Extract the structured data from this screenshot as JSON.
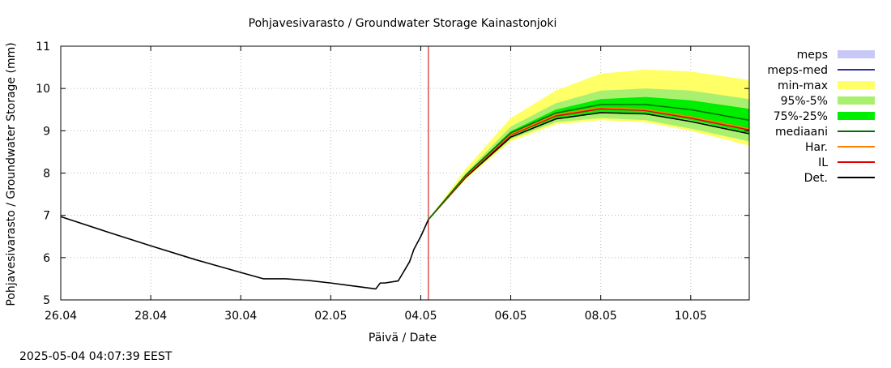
{
  "chart_data": {
    "type": "line",
    "title": "Pohjavesivarasto / Groundwater Storage   Kainastonjoki",
    "xlabel": "Päivä / Date",
    "ylabel": "Pohjavesivarasto / Groundwater Storage (mm)",
    "timestamp": "2025-05-04 04:07:39 EEST",
    "xlim": [
      0,
      15.3
    ],
    "ylim": [
      5,
      11
    ],
    "grid": true,
    "legend_position": "right",
    "x_ticks": [
      {
        "x": 0,
        "label": "26.04"
      },
      {
        "x": 2,
        "label": "28.04"
      },
      {
        "x": 4,
        "label": "30.04"
      },
      {
        "x": 6,
        "label": "02.05"
      },
      {
        "x": 8,
        "label": "04.05"
      },
      {
        "x": 10,
        "label": "06.05"
      },
      {
        "x": 12,
        "label": "08.05"
      },
      {
        "x": 14,
        "label": "10.05"
      }
    ],
    "y_ticks": [
      5,
      6,
      7,
      8,
      9,
      10,
      11
    ],
    "current_time_x": 8.17,
    "legend": [
      {
        "key": "meps",
        "label": "meps",
        "kind": "band",
        "color": "#c8c8f8"
      },
      {
        "key": "meps_med",
        "label": "meps-med",
        "kind": "line",
        "color": "#3030a0"
      },
      {
        "key": "minmax",
        "label": "min-max",
        "kind": "band",
        "color": "#ffff66"
      },
      {
        "key": "p95_5",
        "label": "95%-5%",
        "kind": "band",
        "color": "#aaf070"
      },
      {
        "key": "p75_25",
        "label": "75%-25%",
        "kind": "band",
        "color": "#00ee00"
      },
      {
        "key": "median",
        "label": "mediaani",
        "kind": "line",
        "color": "#007000"
      },
      {
        "key": "har",
        "label": "Har.",
        "kind": "line",
        "color": "#ff8000"
      },
      {
        "key": "il",
        "label": "IL",
        "kind": "line",
        "color": "#e00000"
      },
      {
        "key": "det",
        "label": "Det.",
        "kind": "line",
        "color": "#000000"
      }
    ],
    "series": [
      {
        "key": "det_history",
        "color": "#000000",
        "x": [
          0,
          1,
          2,
          3,
          4,
          4.5,
          5,
          5.5,
          6,
          6.5,
          7.0,
          7.1,
          7.2,
          7.5,
          7.75,
          7.85,
          8.0,
          8.17
        ],
        "y": [
          6.97,
          6.62,
          6.28,
          5.95,
          5.65,
          5.5,
          5.5,
          5.46,
          5.4,
          5.33,
          5.26,
          5.4,
          5.4,
          5.45,
          5.9,
          6.2,
          6.5,
          6.9
        ]
      },
      {
        "key": "det",
        "color": "#000000",
        "x": [
          8.17,
          9,
          10,
          11,
          12,
          13,
          14,
          15.3
        ],
        "y": [
          6.9,
          7.9,
          8.85,
          9.28,
          9.43,
          9.4,
          9.22,
          8.93
        ]
      },
      {
        "key": "il",
        "color": "#e00000",
        "x": [
          8.17,
          9,
          10,
          11,
          12,
          13,
          14,
          15.3
        ],
        "y": [
          6.9,
          7.92,
          8.9,
          9.35,
          9.52,
          9.48,
          9.3,
          9.02
        ]
      },
      {
        "key": "har",
        "color": "#ff8000",
        "x": [
          8.17,
          9,
          10,
          11,
          12,
          13,
          14,
          15.3
        ],
        "y": [
          6.9,
          7.94,
          8.92,
          9.38,
          9.55,
          9.5,
          9.33,
          9.05
        ]
      },
      {
        "key": "median",
        "color": "#007000",
        "x": [
          8.17,
          9,
          10,
          11,
          12,
          13,
          14,
          15.3
        ],
        "y": [
          6.9,
          7.95,
          8.95,
          9.42,
          9.62,
          9.62,
          9.5,
          9.25
        ]
      }
    ],
    "bands": [
      {
        "key": "minmax",
        "color": "#ffff66",
        "x": [
          8.17,
          9,
          10,
          11,
          12,
          13,
          14,
          15.3
        ],
        "lower": [
          6.9,
          7.85,
          8.75,
          9.15,
          9.25,
          9.2,
          9.0,
          8.65
        ],
        "upper": [
          6.9,
          8.1,
          9.3,
          9.95,
          10.35,
          10.45,
          10.4,
          10.2
        ]
      },
      {
        "key": "p95_5",
        "color": "#aaf070",
        "x": [
          8.17,
          9,
          10,
          11,
          12,
          13,
          14,
          15.3
        ],
        "lower": [
          6.9,
          7.88,
          8.8,
          9.2,
          9.3,
          9.25,
          9.05,
          8.75
        ],
        "upper": [
          6.9,
          8.0,
          9.1,
          9.65,
          9.95,
          10.0,
          9.95,
          9.75
        ]
      },
      {
        "key": "p75_25",
        "color": "#00ee00",
        "x": [
          8.17,
          9,
          10,
          11,
          12,
          13,
          14,
          15.3
        ],
        "lower": [
          6.9,
          7.92,
          8.88,
          9.3,
          9.45,
          9.42,
          9.25,
          8.95
        ],
        "upper": [
          6.9,
          7.97,
          8.99,
          9.5,
          9.75,
          9.8,
          9.72,
          9.52
        ]
      }
    ]
  }
}
